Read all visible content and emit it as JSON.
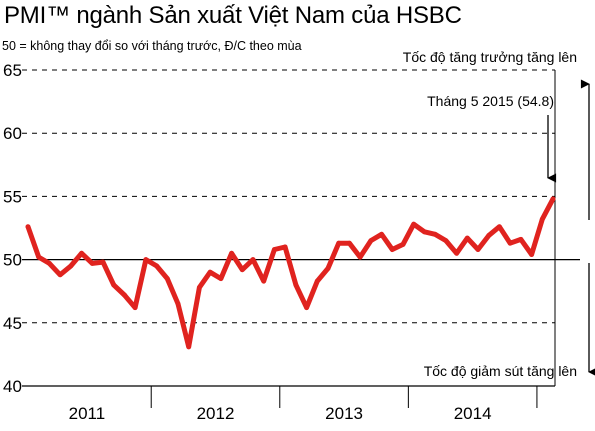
{
  "title": "PMI™ ngành Sản xuất Việt Nam của HSBC",
  "subtitle": "50 = không thay đổi so với tháng trước, Đ/C theo mùa",
  "annotations": {
    "growth": "Tốc độ tăng trưởng tăng lên",
    "decline": "Tốc độ giảm sút tăng lên",
    "latest": "Tháng 5 2015 (54.8)"
  },
  "colors": {
    "line": "#e0231f",
    "axis": "#000000",
    "grid": "#000000"
  },
  "chart_data": {
    "type": "line",
    "title": "PMI™ ngành Sản xuất Việt Nam của HSBC",
    "subtitle": "50 = không thay đổi so với tháng trước, Đ/C theo mùa",
    "xlabel": "",
    "ylabel": "",
    "ylim": [
      40,
      65
    ],
    "yticks": [
      40,
      45,
      50,
      55,
      60,
      65
    ],
    "xticks": [
      "2011",
      "2012",
      "2013",
      "2014"
    ],
    "x_start": "2011-01",
    "x_end": "2015-05",
    "grid": "dashed horizontal at 45, 55, 60, 65; solid line at 50",
    "series": [
      {
        "values": [
          52.6,
          50.2,
          49.7,
          48.8,
          49.5,
          50.5,
          49.7,
          49.8,
          48.0,
          47.2,
          46.2,
          50.0,
          49.5,
          48.5,
          46.5,
          43.1,
          47.8,
          49.0,
          48.5,
          50.5,
          49.2,
          50.0,
          48.3,
          50.8,
          51.0,
          48.0,
          46.2,
          48.3,
          49.3,
          51.3,
          51.3,
          50.2,
          51.5,
          52.0,
          50.8,
          51.2,
          52.8,
          52.2,
          52.0,
          51.5,
          50.5,
          51.7,
          50.8,
          51.9,
          52.6,
          51.3,
          51.6,
          50.4,
          53.2,
          54.8
        ]
      }
    ]
  }
}
